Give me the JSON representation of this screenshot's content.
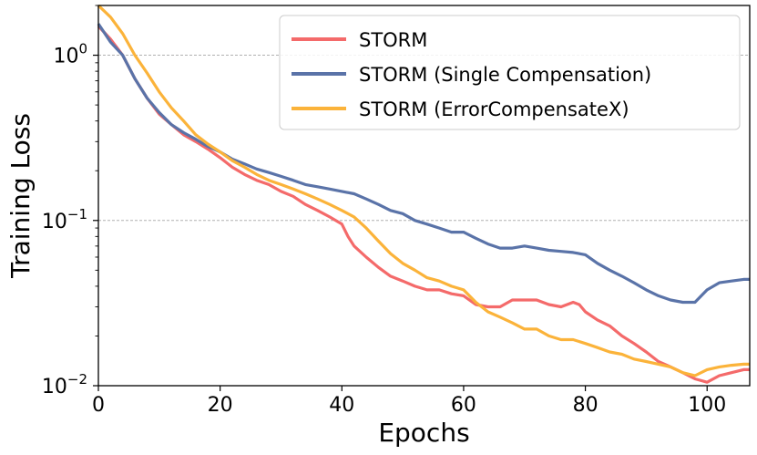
{
  "chart_data": {
    "type": "line",
    "title": "",
    "xlabel": "Epochs",
    "ylabel": "Training Loss",
    "yscale": "log",
    "xlim": [
      0,
      107
    ],
    "ylim": [
      0.01,
      2.0
    ],
    "x_ticks": [
      {
        "value": 0,
        "label": "0"
      },
      {
        "value": 20,
        "label": "20"
      },
      {
        "value": 40,
        "label": "40"
      },
      {
        "value": 60,
        "label": "60"
      },
      {
        "value": 80,
        "label": "80"
      },
      {
        "value": 100,
        "label": "100"
      }
    ],
    "y_ticks": [
      {
        "value": 0.01,
        "base": "10",
        "exp": "−2"
      },
      {
        "value": 0.1,
        "base": "10",
        "exp": "−1"
      },
      {
        "value": 1,
        "base": "10",
        "exp": "0"
      }
    ],
    "grid": "horizontal dashed at major y ticks",
    "legend_position": "top-right",
    "series": [
      {
        "name": "STORM",
        "color": "#f46a6a",
        "points": [
          [
            0,
            1.5
          ],
          [
            2,
            1.25
          ],
          [
            4,
            1.0
          ],
          [
            6,
            0.72
          ],
          [
            8,
            0.55
          ],
          [
            10,
            0.44
          ],
          [
            12,
            0.38
          ],
          [
            14,
            0.33
          ],
          [
            16,
            0.3
          ],
          [
            18,
            0.27
          ],
          [
            20,
            0.24
          ],
          [
            22,
            0.21
          ],
          [
            24,
            0.19
          ],
          [
            26,
            0.175
          ],
          [
            28,
            0.165
          ],
          [
            30,
            0.15
          ],
          [
            32,
            0.14
          ],
          [
            34,
            0.125
          ],
          [
            36,
            0.115
          ],
          [
            38,
            0.105
          ],
          [
            40,
            0.095
          ],
          [
            41,
            0.08
          ],
          [
            42,
            0.07
          ],
          [
            44,
            0.06
          ],
          [
            46,
            0.052
          ],
          [
            48,
            0.046
          ],
          [
            50,
            0.043
          ],
          [
            52,
            0.04
          ],
          [
            54,
            0.038
          ],
          [
            56,
            0.038
          ],
          [
            58,
            0.036
          ],
          [
            60,
            0.035
          ],
          [
            62,
            0.031
          ],
          [
            64,
            0.03
          ],
          [
            66,
            0.03
          ],
          [
            68,
            0.033
          ],
          [
            70,
            0.033
          ],
          [
            72,
            0.033
          ],
          [
            74,
            0.031
          ],
          [
            76,
            0.03
          ],
          [
            78,
            0.032
          ],
          [
            79,
            0.031
          ],
          [
            80,
            0.028
          ],
          [
            82,
            0.025
          ],
          [
            84,
            0.023
          ],
          [
            86,
            0.02
          ],
          [
            88,
            0.018
          ],
          [
            90,
            0.016
          ],
          [
            92,
            0.014
          ],
          [
            94,
            0.013
          ],
          [
            96,
            0.012
          ],
          [
            98,
            0.011
          ],
          [
            100,
            0.0105
          ],
          [
            102,
            0.0115
          ],
          [
            104,
            0.012
          ],
          [
            106,
            0.0125
          ],
          [
            107,
            0.0125
          ]
        ]
      },
      {
        "name": "STORM (Single Compensation)",
        "color": "#5a73a8",
        "points": [
          [
            0,
            1.55
          ],
          [
            2,
            1.2
          ],
          [
            4,
            1.0
          ],
          [
            6,
            0.72
          ],
          [
            8,
            0.55
          ],
          [
            10,
            0.45
          ],
          [
            12,
            0.38
          ],
          [
            14,
            0.34
          ],
          [
            16,
            0.31
          ],
          [
            18,
            0.28
          ],
          [
            20,
            0.26
          ],
          [
            22,
            0.235
          ],
          [
            24,
            0.22
          ],
          [
            26,
            0.205
          ],
          [
            28,
            0.195
          ],
          [
            30,
            0.185
          ],
          [
            32,
            0.175
          ],
          [
            34,
            0.165
          ],
          [
            36,
            0.16
          ],
          [
            38,
            0.155
          ],
          [
            40,
            0.15
          ],
          [
            42,
            0.145
          ],
          [
            44,
            0.135
          ],
          [
            46,
            0.125
          ],
          [
            48,
            0.115
          ],
          [
            50,
            0.11
          ],
          [
            52,
            0.1
          ],
          [
            54,
            0.095
          ],
          [
            56,
            0.09
          ],
          [
            58,
            0.085
          ],
          [
            60,
            0.085
          ],
          [
            62,
            0.078
          ],
          [
            64,
            0.072
          ],
          [
            66,
            0.068
          ],
          [
            68,
            0.068
          ],
          [
            70,
            0.07
          ],
          [
            72,
            0.068
          ],
          [
            74,
            0.066
          ],
          [
            76,
            0.065
          ],
          [
            78,
            0.064
          ],
          [
            80,
            0.062
          ],
          [
            82,
            0.055
          ],
          [
            84,
            0.05
          ],
          [
            86,
            0.046
          ],
          [
            88,
            0.042
          ],
          [
            90,
            0.038
          ],
          [
            92,
            0.035
          ],
          [
            94,
            0.033
          ],
          [
            96,
            0.032
          ],
          [
            98,
            0.032
          ],
          [
            100,
            0.038
          ],
          [
            102,
            0.042
          ],
          [
            104,
            0.043
          ],
          [
            106,
            0.044
          ],
          [
            107,
            0.044
          ]
        ]
      },
      {
        "name": "STORM (ErrorCompensateX)",
        "color": "#fbb33a",
        "points": [
          [
            0,
            2.0
          ],
          [
            2,
            1.7
          ],
          [
            4,
            1.35
          ],
          [
            6,
            1.0
          ],
          [
            8,
            0.78
          ],
          [
            10,
            0.6
          ],
          [
            12,
            0.48
          ],
          [
            14,
            0.4
          ],
          [
            16,
            0.33
          ],
          [
            18,
            0.29
          ],
          [
            20,
            0.26
          ],
          [
            22,
            0.23
          ],
          [
            24,
            0.21
          ],
          [
            26,
            0.19
          ],
          [
            28,
            0.175
          ],
          [
            30,
            0.165
          ],
          [
            32,
            0.155
          ],
          [
            34,
            0.145
          ],
          [
            36,
            0.135
          ],
          [
            38,
            0.125
          ],
          [
            40,
            0.115
          ],
          [
            42,
            0.105
          ],
          [
            44,
            0.09
          ],
          [
            46,
            0.075
          ],
          [
            48,
            0.063
          ],
          [
            50,
            0.055
          ],
          [
            52,
            0.05
          ],
          [
            54,
            0.045
          ],
          [
            56,
            0.043
          ],
          [
            58,
            0.04
          ],
          [
            60,
            0.038
          ],
          [
            62,
            0.032
          ],
          [
            64,
            0.028
          ],
          [
            66,
            0.026
          ],
          [
            68,
            0.024
          ],
          [
            70,
            0.022
          ],
          [
            72,
            0.022
          ],
          [
            74,
            0.02
          ],
          [
            76,
            0.019
          ],
          [
            78,
            0.019
          ],
          [
            80,
            0.018
          ],
          [
            82,
            0.017
          ],
          [
            84,
            0.016
          ],
          [
            86,
            0.0155
          ],
          [
            88,
            0.0145
          ],
          [
            90,
            0.014
          ],
          [
            92,
            0.0135
          ],
          [
            94,
            0.013
          ],
          [
            96,
            0.012
          ],
          [
            98,
            0.0115
          ],
          [
            100,
            0.0125
          ],
          [
            102,
            0.013
          ],
          [
            104,
            0.0133
          ],
          [
            106,
            0.0135
          ],
          [
            107,
            0.0135
          ]
        ]
      }
    ]
  }
}
